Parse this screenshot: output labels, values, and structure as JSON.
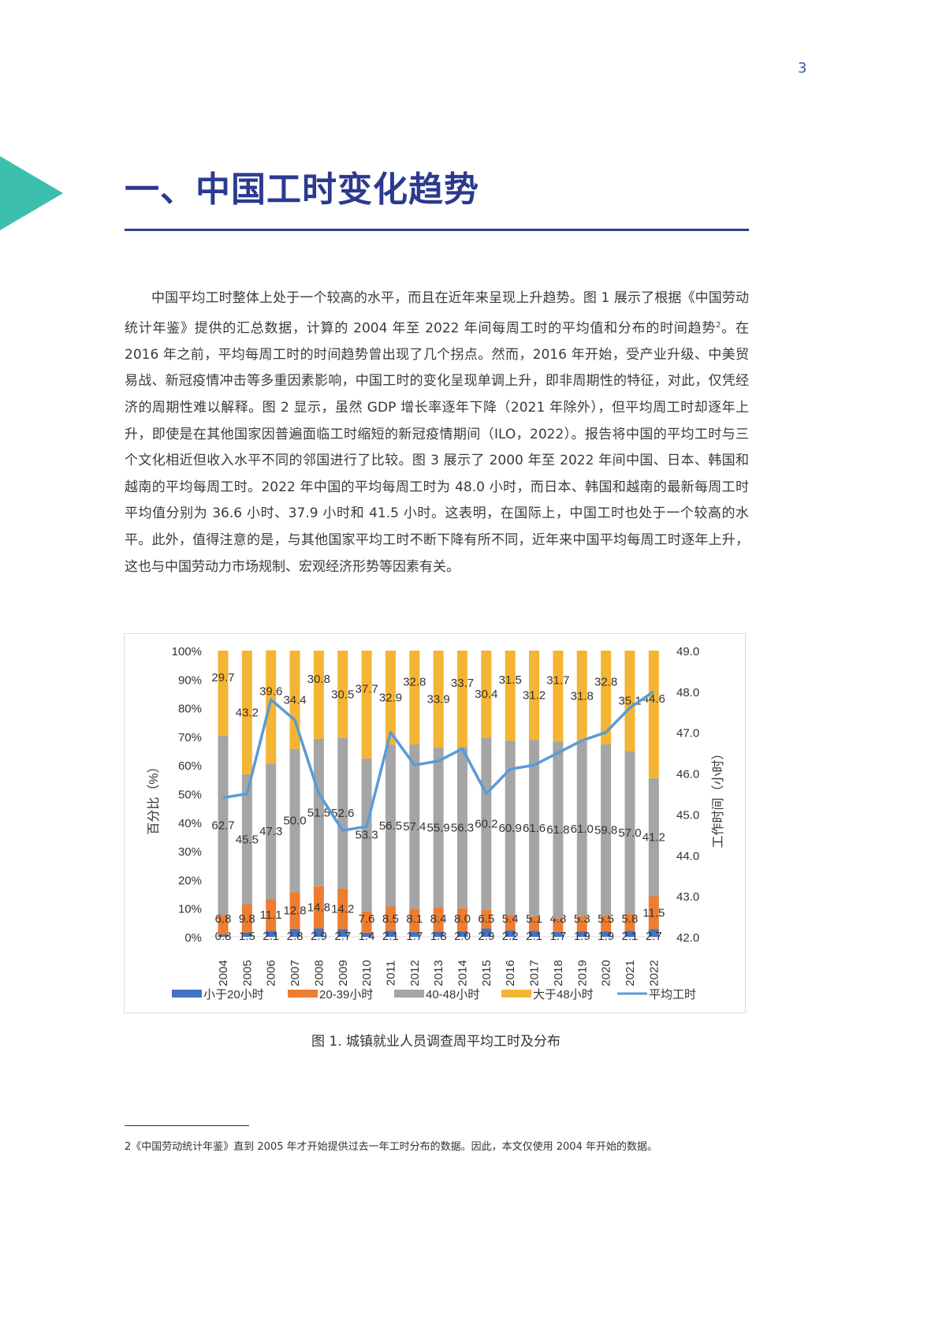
{
  "page_number": "3",
  "section_title": "一、中国工时变化趋势",
  "colors": {
    "title": "#2b3a8f",
    "accent_triangle": "#3dbfae",
    "lt20": "#4472c4",
    "h20_39": "#ed7d31",
    "h40_48": "#a5a5a5",
    "gt48": "#f4b434",
    "avg_line": "#5b9bd5"
  },
  "body": {
    "text_before_sup": "中国平均工时整体上处于一个较高的水平，而且在近年来呈现上升趋势。图 1 展示了根据《中国劳动统计年鉴》提供的汇总数据，计算的 2004 年至 2022 年间每周工时的平均值和分布的时间趋势",
    "sup": "2",
    "text_after_sup": "。在 2016 年之前，平均每周工时的时间趋势曾出现了几个拐点。然而，2016 年开始，受产业升级、中美贸易战、新冠疫情冲击等多重因素影响，中国工时的变化呈现单调上升，即非周期性的特征，对此，仅凭经济的周期性难以解释。图 2 显示，虽然 GDP 增长率逐年下降（2021 年除外），但平均周工时却逐年上升，即使是在其他国家因普遍面临工时缩短的新冠疫情期间（ILO，2022）。报告将中国的平均工时与三个文化相近但收入水平不同的邻国进行了比较。图 3 展示了 2000 年至 2022 年间中国、日本、韩国和越南的平均每周工时。2022 年中国的平均每周工时为 48.0 小时，而日本、韩国和越南的最新每周工时平均值分别为 36.6 小时、37.9 小时和 41.5 小时。这表明，在国际上，中国工时也处于一个较高的水平。此外，值得注意的是，与其他国家平均工时不断下降有所不同，近年来中国平均每周工时逐年上升，这也与中国劳动力市场规制、宏观经济形势等因素有关。"
  },
  "chart_data": {
    "type": "bar",
    "subtype": "stacked-percent-bar-with-line",
    "categories": [
      "2004",
      "2005",
      "2006",
      "2007",
      "2008",
      "2009",
      "2010",
      "2011",
      "2012",
      "2013",
      "2014",
      "2015",
      "2016",
      "2017",
      "2018",
      "2019",
      "2020",
      "2021",
      "2022"
    ],
    "series": [
      {
        "name": "小于20小时",
        "values": [
          0.8,
          1.5,
          2.1,
          2.8,
          2.9,
          2.7,
          1.4,
          2.1,
          1.7,
          1.8,
          2.0,
          2.9,
          2.2,
          2.1,
          1.7,
          1.9,
          1.9,
          2.1,
          2.7
        ]
      },
      {
        "name": "20-39小时",
        "values": [
          6.8,
          9.8,
          11.1,
          12.8,
          14.8,
          14.2,
          7.6,
          8.5,
          8.1,
          8.4,
          8.0,
          6.5,
          5.4,
          5.1,
          4.8,
          5.3,
          5.5,
          5.8,
          11.5
        ]
      },
      {
        "name": "40-48小时",
        "values": [
          62.7,
          45.5,
          47.3,
          50.0,
          51.5,
          52.6,
          53.3,
          56.5,
          57.4,
          55.9,
          56.3,
          60.2,
          60.9,
          61.6,
          61.8,
          61.0,
          59.8,
          57.0,
          41.2
        ]
      },
      {
        "name": "大于48小时",
        "values": [
          29.7,
          43.2,
          39.6,
          34.4,
          30.8,
          30.5,
          37.7,
          32.9,
          32.8,
          33.9,
          33.7,
          30.4,
          31.5,
          31.2,
          31.7,
          31.8,
          32.8,
          35.1,
          44.6
        ]
      }
    ],
    "line_series": {
      "name": "平均工时",
      "axis": "right",
      "values": [
        45.4,
        45.5,
        47.8,
        47.3,
        45.5,
        44.6,
        44.7,
        47.0,
        46.2,
        46.3,
        46.6,
        45.5,
        46.1,
        46.2,
        46.5,
        46.8,
        47.0,
        47.6,
        48.0
      ]
    },
    "ylabel": "百分比（%）",
    "y2label": "工作时间（小时）",
    "ylim": [
      0,
      100
    ],
    "y2lim": [
      42,
      49
    ],
    "yticks": [
      "0%",
      "10%",
      "20%",
      "30%",
      "40%",
      "50%",
      "60%",
      "70%",
      "80%",
      "90%",
      "100%"
    ],
    "y2ticks": [
      "42.0",
      "43.0",
      "44.0",
      "45.0",
      "46.0",
      "47.0",
      "48.0",
      "49.0"
    ],
    "legend_position": "bottom",
    "grid": false
  },
  "caption": "图 1. 城镇就业人员调查周平均工时及分布",
  "footnote": "2《中国劳动统计年鉴》直到 2005 年才开始提供过去一年工时分布的数据。因此，本文仅使用 2004 年开始的数据。"
}
